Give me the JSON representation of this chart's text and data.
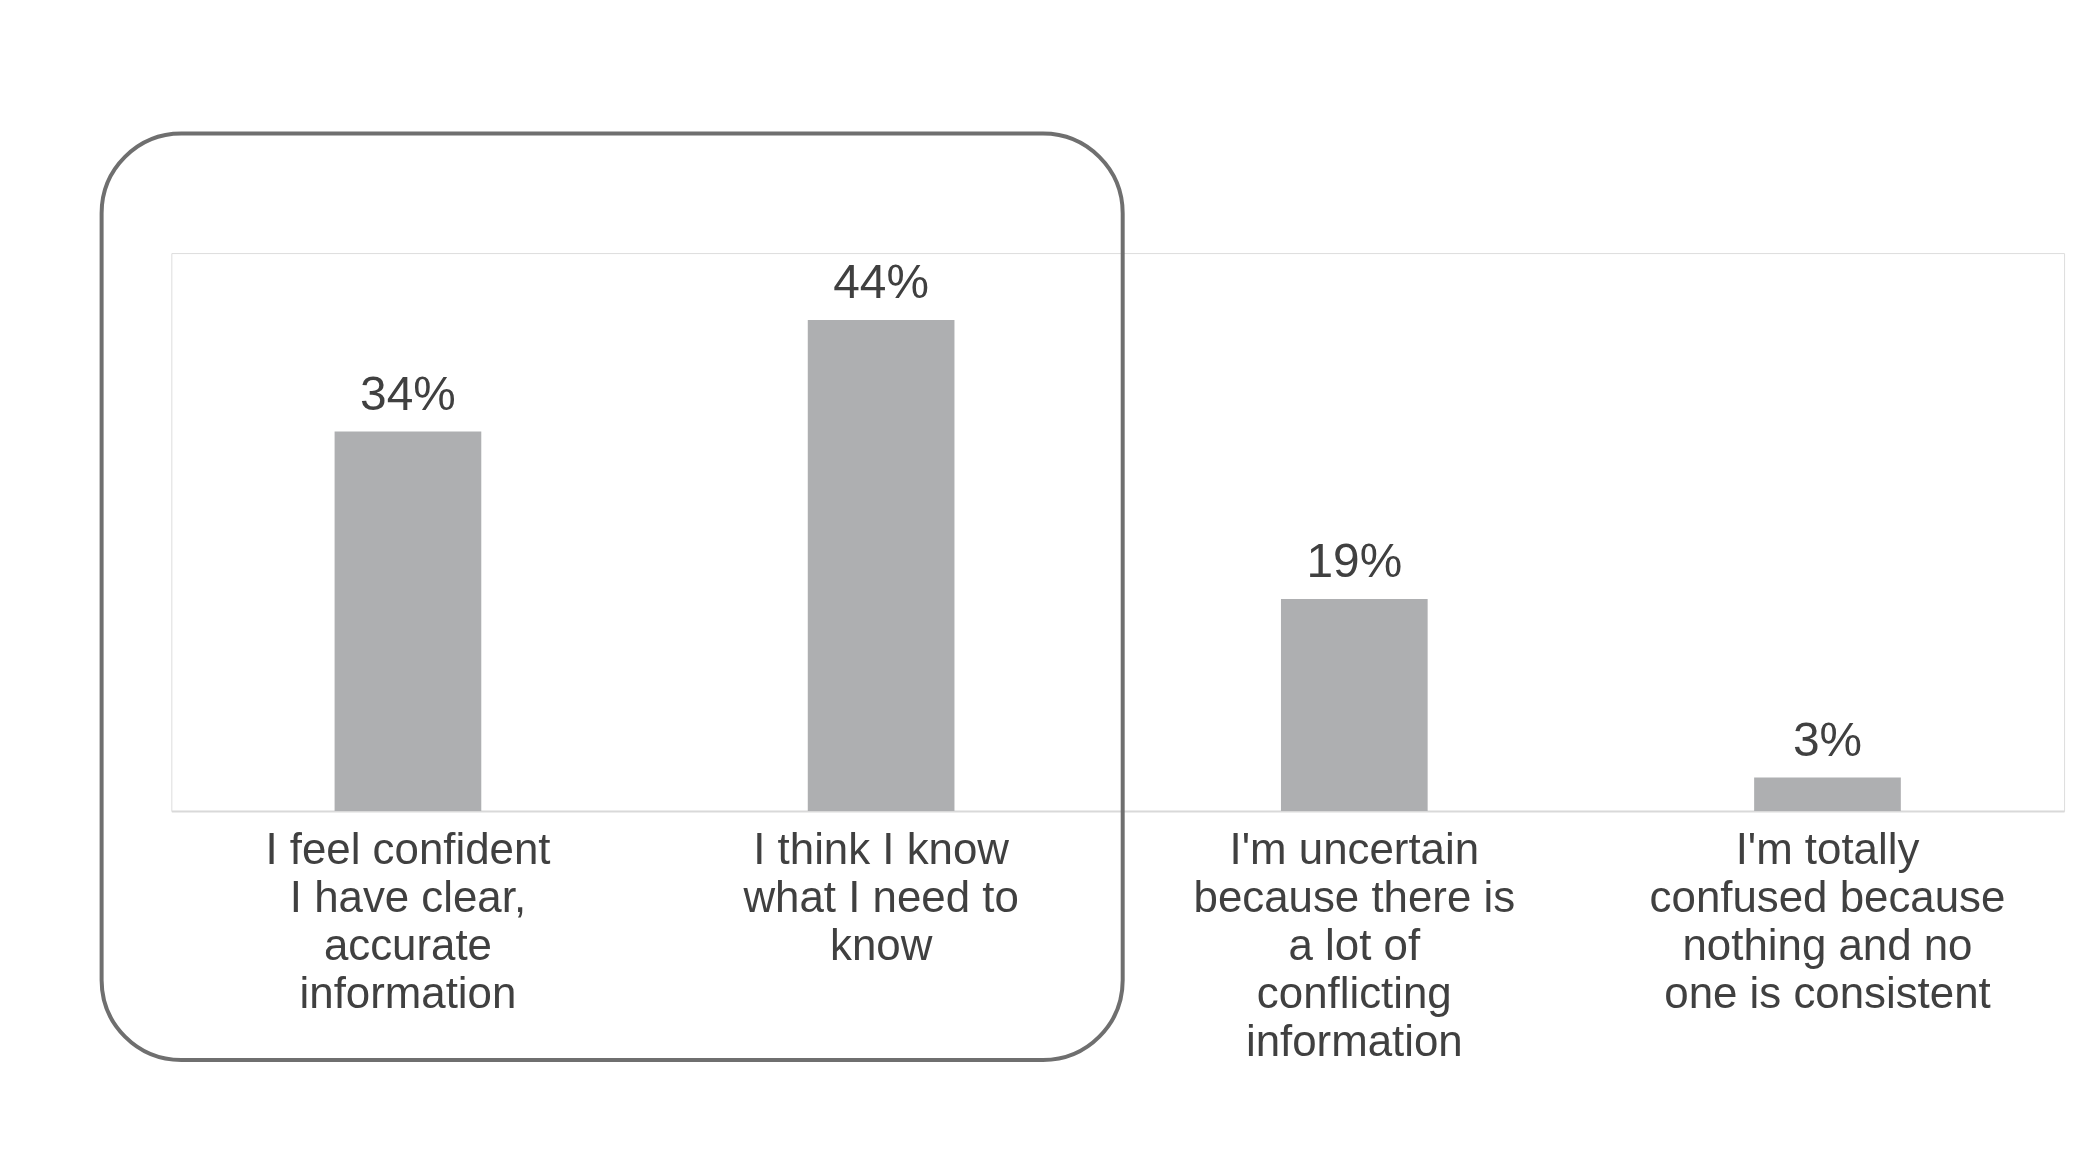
{
  "chart_data": {
    "type": "bar",
    "categories": [
      "I feel confident I have clear, accurate information",
      "I think I know what I need to know",
      "I'm uncertain because there is a lot of conflicting information",
      "I'm totally confused because nothing and no one is consistent"
    ],
    "values": [
      34,
      44,
      19,
      3
    ],
    "value_labels": [
      "34%",
      "44%",
      "19%",
      "3%"
    ],
    "color": "#aeafb1",
    "ylim": [
      0,
      50
    ],
    "tick_labels": "x"
  }
}
